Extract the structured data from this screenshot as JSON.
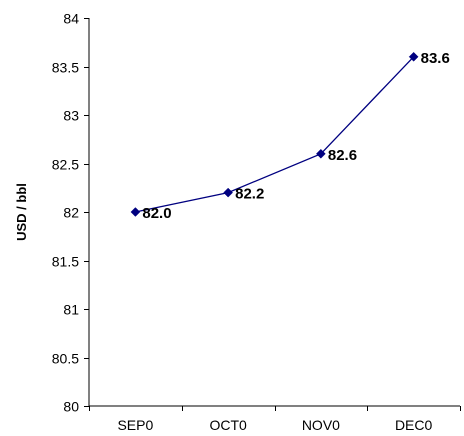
{
  "chart_data": {
    "type": "line",
    "title": "",
    "xlabel": "",
    "ylabel": "USD / bbl",
    "categories": [
      "SEP0",
      "OCT0",
      "NOV0",
      "DEC0"
    ],
    "series": [
      {
        "values": [
          82.0,
          82.2,
          82.6,
          83.6
        ],
        "data_labels": [
          "82.0",
          "82.2",
          "82.6",
          "83.6"
        ],
        "color": "#000080",
        "marker": "diamond"
      }
    ],
    "ylim": [
      80,
      84
    ],
    "y_ticks": [
      80,
      80.5,
      81,
      81.5,
      82,
      82.5,
      83,
      83.5,
      84
    ],
    "y_tick_labels": [
      "80",
      "80.5",
      "81",
      "81.5",
      "82",
      "82.5",
      "83",
      "83.5",
      "84"
    ],
    "grid": false,
    "legend": "none"
  }
}
